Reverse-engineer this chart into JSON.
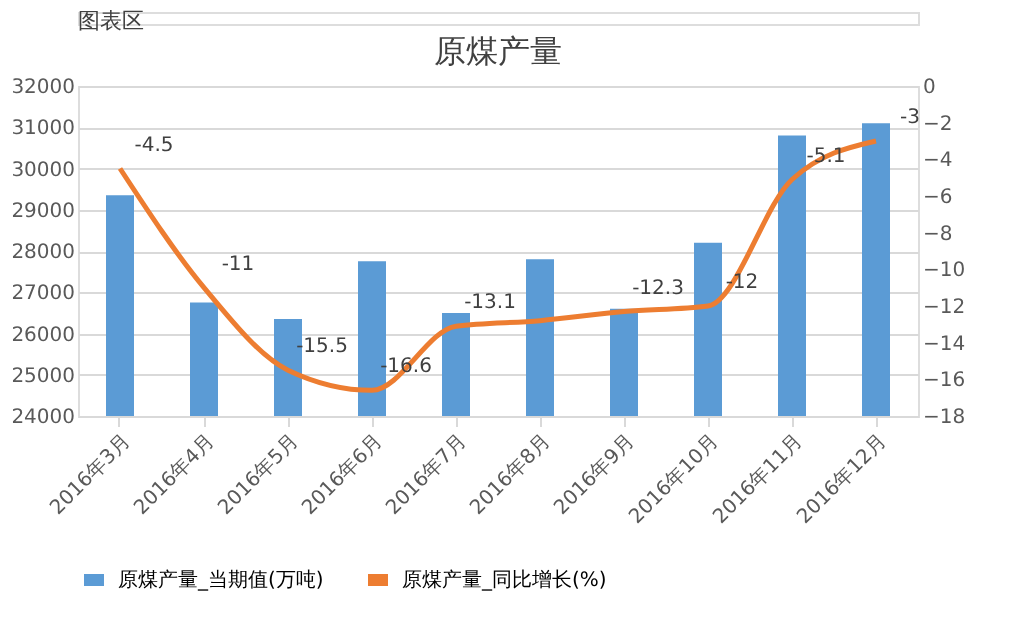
{
  "chart_data": {
    "type": "bar",
    "title": "原煤产量",
    "categories": [
      "2016年3月",
      "2016年4月",
      "2016年5月",
      "2016年6月",
      "2016年7月",
      "2016年8月",
      "2016年9月",
      "2016年10月",
      "2016年11月",
      "2016年12月"
    ],
    "series": [
      {
        "name": "原煤产量_当期值(万吨)",
        "color": "#5b9bd5",
        "values": [
          29350,
          26750,
          26350,
          27750,
          26500,
          27800,
          26600,
          28200,
          30800,
          31100
        ]
      },
      {
        "name": "原煤产量_同比增长(%)",
        "type": "line",
        "axis": "y2",
        "color": "#ed7d31",
        "values": [
          -4.5,
          -11,
          -15.5,
          -16.6,
          -13.1,
          -12.8,
          -12.3,
          -12,
          -5.1,
          -3
        ],
        "value_labels": [
          "-4.5",
          "-11",
          "-15.5",
          "-16.6",
          "-13.1",
          null,
          "-12.3",
          "-12",
          "-5.1",
          "-3"
        ]
      }
    ],
    "ylim": [
      24000,
      32000
    ],
    "yticks": [
      24000,
      25000,
      26000,
      27000,
      28000,
      29000,
      30000,
      31000,
      32000
    ],
    "y2lim": [
      -18,
      0
    ],
    "y2ticks": [
      -18,
      -16,
      -14,
      -12,
      -10,
      -8,
      -6,
      -4,
      -2,
      0
    ],
    "grid": "y",
    "legend": "bottom",
    "marker": "none",
    "annotations": [
      "图表区"
    ]
  }
}
